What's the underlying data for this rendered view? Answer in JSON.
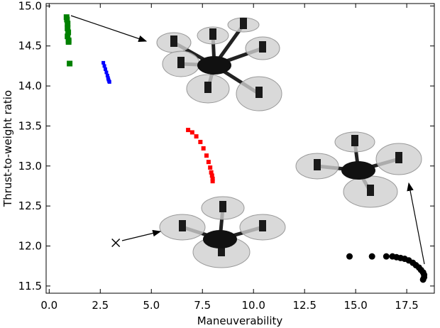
{
  "chart_data": {
    "type": "scatter",
    "x_label": "Maneuverability",
    "y_label": "Thrust-to-weight ratio",
    "xlim": [
      -0.15,
      18.85
    ],
    "ylim": [
      11.41,
      15.03
    ],
    "xticks": [
      {
        "value": 0,
        "label": "0.0"
      },
      2.5,
      {
        "value": 5,
        "label": "5.0"
      },
      7.5,
      {
        "value": 10,
        "label": "10.0"
      },
      12.5,
      {
        "value": 15,
        "label": "15.0"
      },
      17.5
    ],
    "yticks": [
      11.5,
      {
        "value": 12,
        "label": "12.0"
      },
      12.5,
      {
        "value": 13,
        "label": "13.0"
      },
      13.5,
      {
        "value": 14,
        "label": "14.0"
      },
      14.5,
      {
        "value": 15,
        "label": "15.0"
      }
    ],
    "series": [
      {
        "color": "#008000",
        "marker": "s",
        "size": 8,
        "x": [
          0.85,
          0.87,
          0.9,
          0.9,
          0.93,
          0.9,
          0.95,
          0.95,
          1.0
        ],
        "values": [
          14.86,
          14.83,
          14.78,
          14.72,
          14.67,
          14.62,
          14.57,
          14.55,
          14.28
        ]
      },
      {
        "color": "#0000ff",
        "marker": "s",
        "size": 5,
        "x": [
          2.65,
          2.7,
          2.75,
          2.8,
          2.85,
          2.88,
          2.9,
          2.93,
          2.95
        ],
        "values": [
          14.29,
          14.25,
          14.21,
          14.17,
          14.13,
          14.1,
          14.08,
          14.06,
          14.05
        ]
      },
      {
        "color": "#ff0000",
        "marker": "s",
        "size": 6,
        "x": [
          6.8,
          7.0,
          7.2,
          7.4,
          7.55,
          7.7,
          7.8,
          7.88,
          7.93,
          7.97,
          8.0,
          8.0
        ],
        "values": [
          13.45,
          13.42,
          13.37,
          13.3,
          13.22,
          13.13,
          13.05,
          12.98,
          12.92,
          12.88,
          12.84,
          12.81
        ]
      },
      {
        "color": "#000000",
        "marker": "o",
        "size": 9,
        "x": [
          14.7,
          15.8,
          16.5,
          16.8,
          17.0,
          17.2,
          17.4,
          17.6,
          17.8,
          17.95,
          18.1,
          18.2,
          18.3,
          18.35,
          18.35,
          18.3
        ],
        "values": [
          11.87,
          11.87,
          11.87,
          11.87,
          11.86,
          11.85,
          11.84,
          11.82,
          11.79,
          11.76,
          11.73,
          11.7,
          11.67,
          11.64,
          11.61,
          11.58
        ]
      },
      {
        "color": "#000000",
        "marker": "x",
        "size": 11,
        "x": [
          3.26
        ],
        "values": [
          12.04
        ]
      }
    ]
  }
}
